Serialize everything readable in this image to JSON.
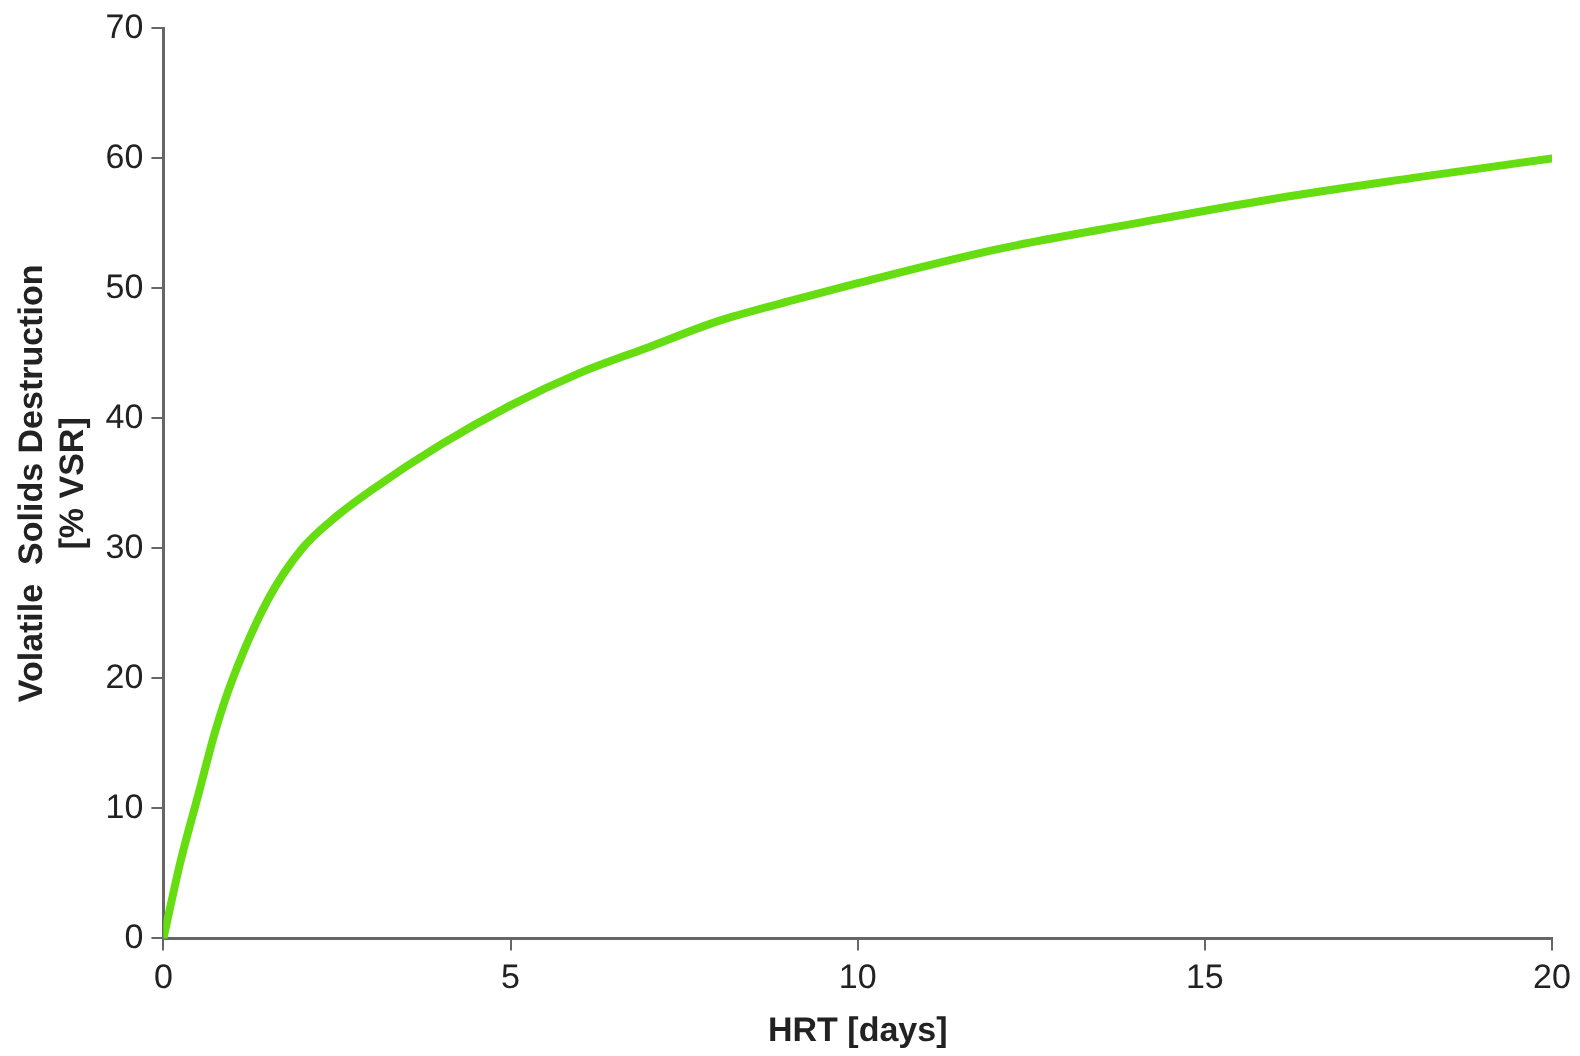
{
  "chart_data": {
    "type": "line",
    "xlabel": "HRT [days]",
    "ylabel": "Volatile  Solids Destruction\n[% VSR]",
    "x": [
      0,
      0.25,
      0.5,
      0.75,
      1,
      1.5,
      2,
      2.5,
      3,
      4,
      5,
      6,
      7,
      8,
      9,
      10,
      12,
      14,
      16,
      18,
      20
    ],
    "series": [
      {
        "color": "#66dd11",
        "values": [
          0,
          6,
          11,
          16,
          20,
          26,
          30,
          32.5,
          34.5,
          38,
          41,
          43.5,
          45.5,
          47.5,
          49,
          50.4,
          53,
          55,
          56.9,
          58.5,
          60
        ]
      }
    ],
    "xlim": [
      0,
      20
    ],
    "xticks": [
      0,
      5,
      10,
      15,
      20
    ],
    "ylim": [
      0,
      70
    ],
    "yticks": [
      0,
      10,
      20,
      30,
      40,
      50,
      60,
      70
    ],
    "grid": false,
    "legend": false,
    "marker": "none",
    "line_style": "solid"
  }
}
